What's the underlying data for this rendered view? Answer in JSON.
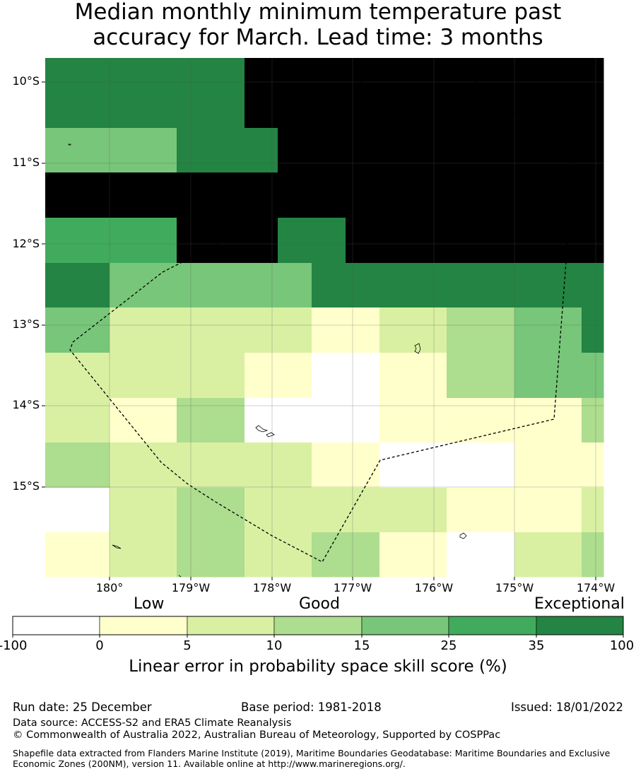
{
  "title": {
    "line1": "Median monthly minimum temperature past",
    "line2": "accuracy for March. Lead time: 3 months"
  },
  "map": {
    "lat_labels": [
      "10°S",
      "11°S",
      "12°S",
      "13°S",
      "14°S",
      "15°S"
    ],
    "lon_labels": [
      "180°",
      "179°W",
      "178°W",
      "177°W",
      "176°W",
      "175°W",
      "174°W"
    ],
    "grid_levels": [
      [
        6,
        6,
        6,
        6,
        6,
        6,
        7,
        7,
        7,
        7,
        7,
        7,
        7,
        7,
        7,
        7,
        7
      ],
      [
        4,
        4,
        4,
        4,
        6,
        6,
        6,
        7,
        7,
        7,
        7,
        7,
        7,
        7,
        7,
        7,
        7
      ],
      [
        7,
        7,
        7,
        7,
        7,
        7,
        7,
        7,
        7,
        7,
        7,
        7,
        7,
        7,
        7,
        7,
        7
      ],
      [
        5,
        5,
        5,
        5,
        7,
        7,
        7,
        6,
        6,
        7,
        7,
        7,
        7,
        7,
        7,
        7,
        7
      ],
      [
        6,
        6,
        4,
        4,
        4,
        4,
        4,
        4,
        6,
        6,
        6,
        6,
        6,
        6,
        6,
        6,
        6
      ],
      [
        4,
        4,
        2,
        2,
        2,
        2,
        2,
        2,
        1,
        1,
        2,
        2,
        3,
        3,
        4,
        4,
        6
      ],
      [
        2,
        2,
        2,
        2,
        2,
        2,
        1,
        1,
        0,
        0,
        1,
        1,
        3,
        3,
        4,
        4,
        4
      ],
      [
        2,
        2,
        1,
        1,
        3,
        3,
        0,
        0,
        0,
        0,
        1,
        1,
        1,
        1,
        1,
        1,
        3
      ],
      [
        3,
        3,
        2,
        2,
        2,
        2,
        2,
        2,
        1,
        1,
        0,
        0,
        0,
        0,
        1,
        1,
        1
      ],
      [
        0,
        0,
        2,
        2,
        3,
        3,
        2,
        2,
        2,
        2,
        2,
        2,
        1,
        1,
        1,
        1,
        2
      ],
      [
        1,
        1,
        2,
        2,
        3,
        3,
        2,
        2,
        3,
        3,
        1,
        1,
        0,
        0,
        2,
        2,
        3
      ]
    ]
  },
  "colorbar": {
    "quality_labels": [
      "Low",
      "Good",
      "Exceptional"
    ],
    "ticks": [
      "-100",
      "0",
      "5",
      "10",
      "15",
      "25",
      "35",
      "100"
    ],
    "colors": [
      "#ffffff",
      "#ffffcc",
      "#d9f0a3",
      "#addd8e",
      "#78c679",
      "#41ab5d",
      "#238443"
    ],
    "title": "Linear error in probability space skill score (%)"
  },
  "footer": {
    "run_date": "Run date: 25 December",
    "base_period": "Base period: 1981-2018",
    "issued": "Issued: 18/01/2022",
    "data_source": "Data source: ACCESS-S2 and ERA5 Climate Reanalysis",
    "copyright": "© Commonwealth of Australia 2022, Australian Bureau of Meteorology, Supported by COSPPac",
    "shapefile_note": "Shapefile data extracted from Flanders Marine Institute (2019), Maritime Boundaries Geodatabase: Maritime Boundaries and Exclusive Economic Zones (200NM), version 11. Available online at http://www.marineregions.org/."
  }
}
